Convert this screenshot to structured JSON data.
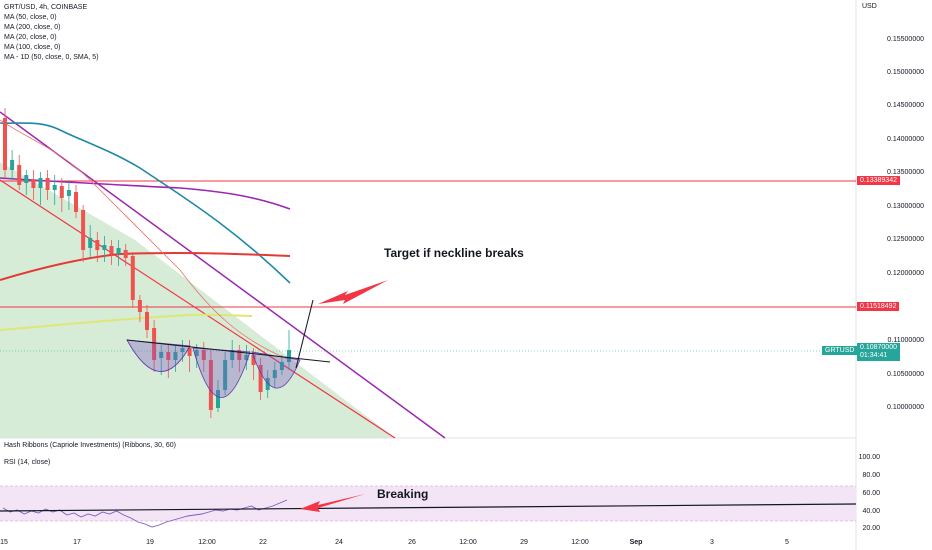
{
  "symbol_legend": "GRT/USD, 4h, COINBASE",
  "indicators": [
    "MA (50, close, 0)",
    "MA (200, close, 0)",
    "MA (20, close, 0)",
    "MA (100, close, 0)",
    "MA - 1D (50, close, 0, SMA, 5)"
  ],
  "currency": "USD",
  "price_axis": [
    {
      "label": "0.15500000",
      "value": 0.155
    },
    {
      "label": "0.15000000",
      "value": 0.15
    },
    {
      "label": "0.14500000",
      "value": 0.145
    },
    {
      "label": "0.14000000",
      "value": 0.14
    },
    {
      "label": "0.13500000",
      "value": 0.135
    },
    {
      "label": "0.13000000",
      "value": 0.13
    },
    {
      "label": "0.12500000",
      "value": 0.125
    },
    {
      "label": "0.12000000",
      "value": 0.12
    },
    {
      "label": "0.11000000",
      "value": 0.11
    },
    {
      "label": "0.10500000",
      "value": 0.105
    },
    {
      "label": "0.10000000",
      "value": 0.1
    }
  ],
  "price_tags": {
    "upper_level": "0.13389342",
    "lower_level": "0.11518492",
    "symbol": "GRTUSD",
    "last_price": "0.10870000",
    "countdown": "01:34:41"
  },
  "colors": {
    "up": "#26a69a",
    "down": "#ef5350",
    "level": "#f23645",
    "ma_purple": "#9c27b0",
    "ma_teal": "#1e88a8",
    "rsi_band": "#e1bee7"
  },
  "annotations": {
    "target_note": "Target if neckline breaks",
    "breaking_note": "Breaking"
  },
  "hash_ribbons_label": "Hash Ribbons (Capriole Investments) (Ribbons, 30, 60)",
  "rsi_label": "RSI (14, close)",
  "rsi_axis": [
    {
      "label": "100.00",
      "value": 100
    },
    {
      "label": "80.00",
      "value": 80
    },
    {
      "label": "60.00",
      "value": 60
    },
    {
      "label": "40.00",
      "value": 40
    },
    {
      "label": "20.00",
      "value": 20
    }
  ],
  "time_axis": [
    {
      "label": "15"
    },
    {
      "label": "17"
    },
    {
      "label": "19"
    },
    {
      "label": "12:00"
    },
    {
      "label": "22"
    },
    {
      "label": "24"
    },
    {
      "label": "26"
    },
    {
      "label": "12:00"
    },
    {
      "label": "29"
    },
    {
      "label": "12:00"
    },
    {
      "label": "Sep"
    },
    {
      "label": "3"
    },
    {
      "label": "5"
    }
  ]
}
